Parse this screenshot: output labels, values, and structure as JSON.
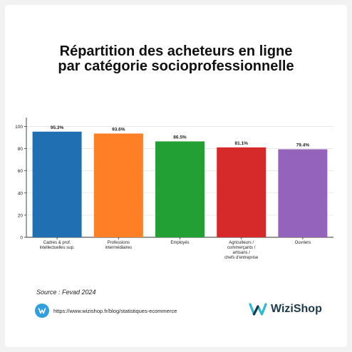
{
  "title_lines": [
    "Répartition des acheteurs en ligne",
    "par catégorie socioprofessionnelle"
  ],
  "chart_data": {
    "type": "bar",
    "categories": [
      [
        "Cadres & prof.",
        "intellectuelles sup."
      ],
      [
        "Professions",
        "intermédiaires"
      ],
      [
        "Employés"
      ],
      [
        "Agriculteurs /",
        "commerçants /",
        "artisans /",
        "chefs d'entreprise"
      ],
      [
        "Ouvriers"
      ]
    ],
    "values": [
      95.3,
      93.6,
      86.5,
      81.1,
      79.4
    ],
    "value_labels": [
      "95.3%",
      "93.6%",
      "86.5%",
      "81.1%",
      "79.4%"
    ],
    "colors": [
      "#1f6fb2",
      "#ff7f27",
      "#23a033",
      "#d62a2a",
      "#9464bc"
    ],
    "ylim": [
      0,
      108
    ],
    "yticks": [
      0,
      20,
      40,
      60,
      80,
      100
    ],
    "grid": true
  },
  "source": "Source : Fevad 2024",
  "footer": {
    "url": "https://www.wizishop.fr/blog/statistiques-ecommerce",
    "link_icon": "link-icon"
  },
  "brand": {
    "name": "WiziShop",
    "logo_icon": "wizishop-logo-icon",
    "accent": "#2fb7d6"
  }
}
